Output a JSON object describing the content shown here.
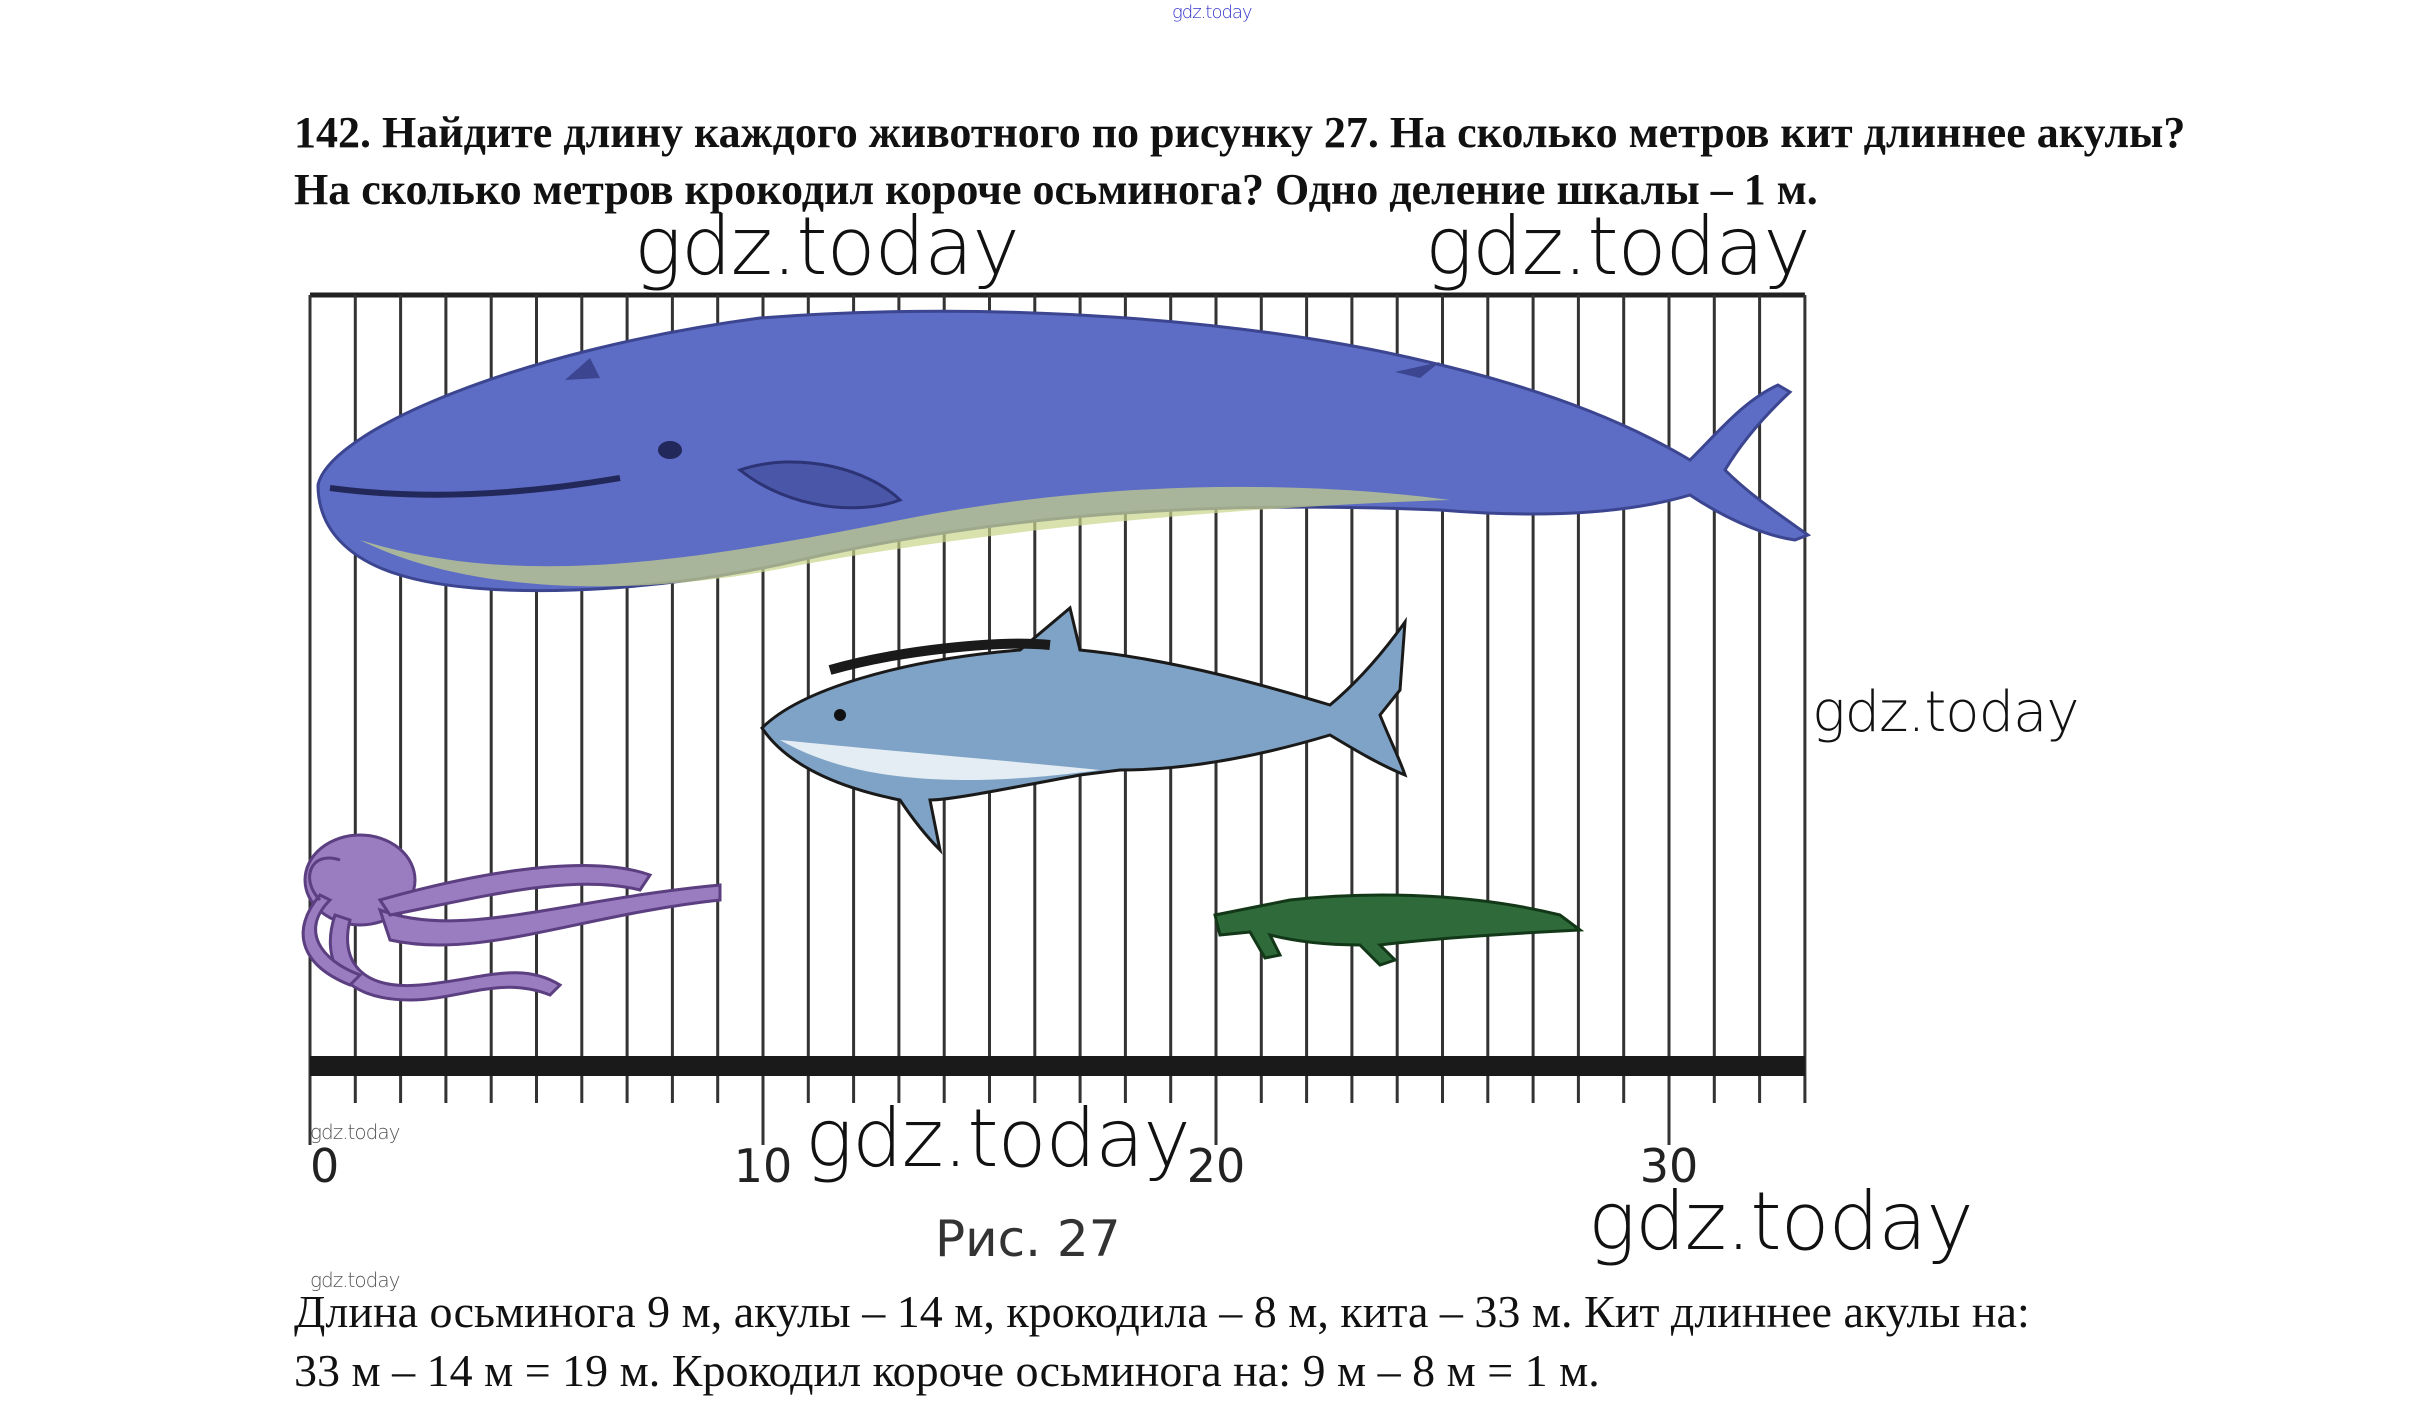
{
  "header_watermark": "gdz.today",
  "task": {
    "text": "142. Найдите длину каждого животного по рисунку 27. На сколько метров кит длиннее акулы? На сколько метров крокодил короче осьминога? Одно деление шкалы – 1 м."
  },
  "figure": {
    "caption": "Рис. 27",
    "scale": {
      "min": 0,
      "max": 33,
      "unit": "м",
      "step": 1,
      "labels": [
        "0",
        "10",
        "20",
        "30"
      ]
    },
    "animals": [
      {
        "name": "кит",
        "start": 0,
        "length": 33,
        "color": "#5d6cc4"
      },
      {
        "name": "акула",
        "start": 10,
        "length": 14,
        "color": "#6f95b8"
      },
      {
        "name": "осьминог",
        "start": 0,
        "length": 9,
        "color": "#9a7cc0"
      },
      {
        "name": "крокодил",
        "start": 20,
        "length": 8,
        "color": "#2f6b3a"
      }
    ]
  },
  "answer": {
    "line1": "Длина осьминога 9 м, акулы – 14 м, крокодила – 8 м, кита – 33 м. Кит длиннее акулы на:",
    "line2": "33 м – 14 м = 19 м. Крокодил короче осьминога на: 9 м – 8 м = 1 м."
  },
  "watermarks": [
    "gdz.today",
    "gdz.today",
    "gdz.today",
    "gdz.today",
    "gdz.today",
    "gdz.today",
    "gdz.today"
  ]
}
